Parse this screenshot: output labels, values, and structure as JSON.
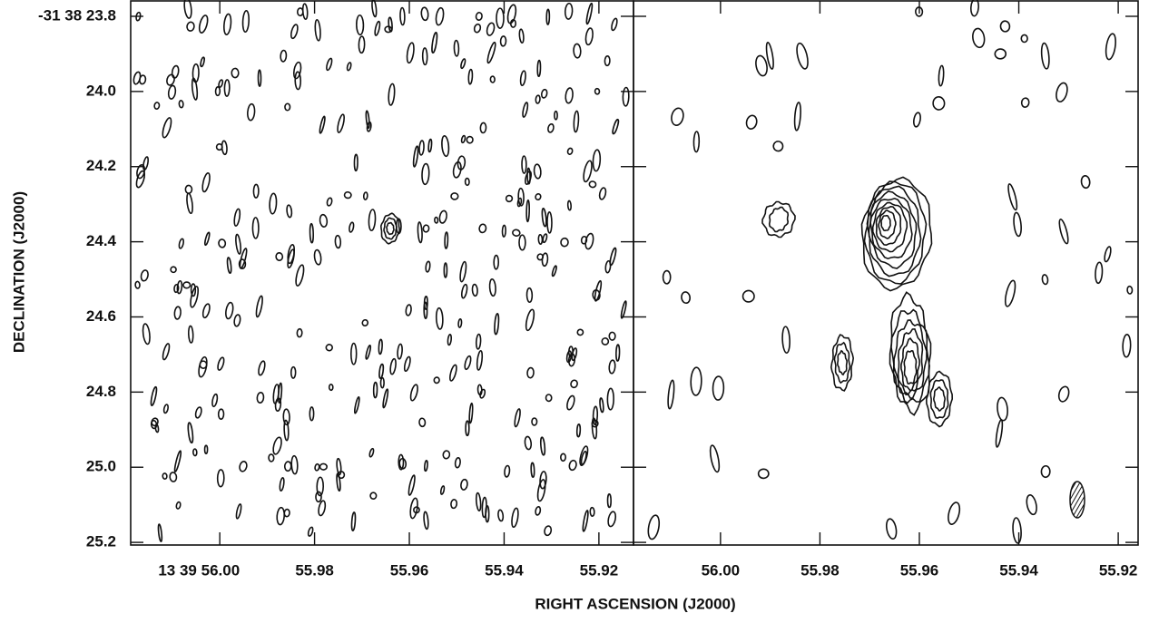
{
  "chart_data": [
    {
      "type": "contour",
      "xlabel": "RIGHT ASCENSION (J2000)",
      "ylabel": "DECLINATION (J2000)",
      "xlim": [
        56.0188,
        55.9127
      ],
      "xticks": [
        {
          "value": 56.0,
          "label": "13 39 56.00"
        },
        {
          "value": 55.98,
          "label": "55.98"
        },
        {
          "value": 55.96,
          "label": "55.96"
        },
        {
          "value": 55.94,
          "label": "55.94"
        },
        {
          "value": 55.92,
          "label": "55.92"
        }
      ],
      "ylim": [
        23.759,
        25.207
      ],
      "y_inverted": true,
      "yticks": [
        {
          "value": 23.8,
          "label": "-31 38 23.8"
        },
        {
          "value": 24.0,
          "label": "24.0"
        },
        {
          "value": 24.2,
          "label": "24.2"
        },
        {
          "value": 24.4,
          "label": "24.4"
        },
        {
          "value": 24.6,
          "label": "24.6"
        },
        {
          "value": 24.8,
          "label": "24.8"
        },
        {
          "value": 25.0,
          "label": "25.0"
        },
        {
          "value": 25.2,
          "label": "25.2"
        }
      ],
      "grid": false
    },
    {
      "type": "contour",
      "xlim": [
        56.0175,
        55.916
      ],
      "xticks": [
        {
          "value": 56.0,
          "label": "56.00"
        },
        {
          "value": 55.98,
          "label": "55.98"
        },
        {
          "value": 55.96,
          "label": "55.96"
        },
        {
          "value": 55.94,
          "label": "55.94"
        },
        {
          "value": 55.92,
          "label": "55.92"
        }
      ],
      "grid": false
    }
  ]
}
